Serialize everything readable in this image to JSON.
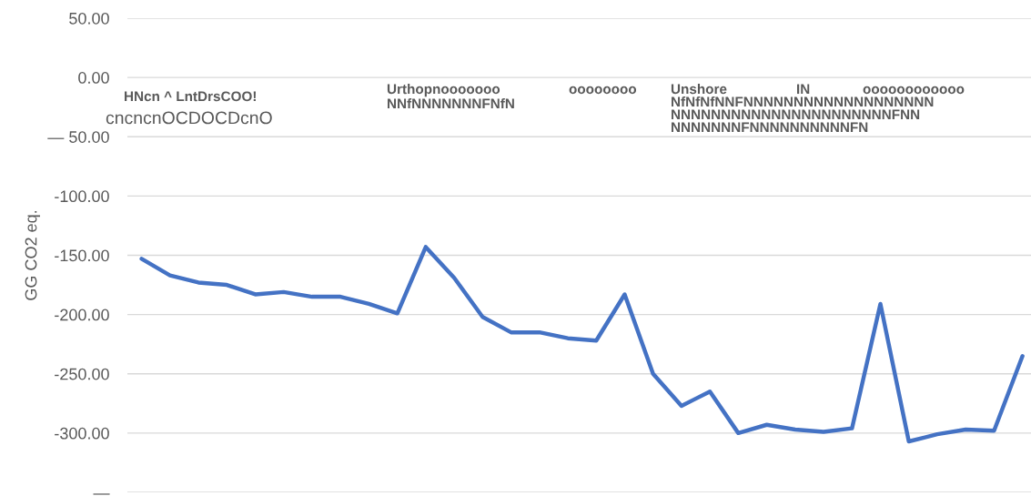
{
  "chart_data": {
    "type": "line",
    "ylabel": "GG CO2 eq.",
    "categories": [
      null,
      null,
      null,
      null,
      null,
      null,
      null,
      null,
      null,
      null,
      null,
      null,
      null,
      null,
      null,
      null,
      null,
      null,
      null,
      null,
      null,
      null,
      null,
      null,
      null,
      null,
      null,
      null,
      null,
      null,
      null,
      null
    ],
    "series": [
      {
        "color": "#4472c4",
        "values": [
          -153,
          -167,
          -173,
          -175,
          -183,
          -181,
          -185,
          -185,
          -191,
          -199,
          -143,
          -169,
          -202,
          -215,
          -215,
          -220,
          -222,
          -183,
          -250,
          -277,
          -265,
          -300,
          -293,
          -297,
          -299,
          -296,
          -191,
          -307,
          -301,
          -297,
          -298,
          -235
        ]
      }
    ],
    "ylim": [
      -350,
      50
    ],
    "yticks": [
      {
        "value": 50,
        "label": "50.00"
      },
      {
        "value": 0,
        "label": "0.00"
      },
      {
        "value": -50,
        "label": "— 50.00"
      },
      {
        "value": -100,
        "label": "-100.00"
      },
      {
        "value": -150,
        "label": "-150.00"
      },
      {
        "value": -200,
        "label": "-200.00"
      },
      {
        "value": -250,
        "label": "-250.00"
      },
      {
        "value": -300,
        "label": "-300.00"
      },
      {
        "value": -350,
        "label": "—"
      }
    ],
    "grid": "y",
    "marker": "none",
    "line_style": "solid",
    "annotations": [
      "HNcn ^ LntDrsCOO!",
      "cncncnOCDOCDcnO",
      "Urthopnooooooo",
      "NNfNNNNNNNFNfN",
      "oooooooo",
      "Unshore",
      "IN",
      "oooooooooooo",
      "NfNfNfNNFNNNNNNNNNNNNNNNNNNN",
      "NNNNNNNNNNNNNNNNNNNNNNFNN",
      "NNNNNNNFNNNNNNNNNNFN"
    ]
  }
}
